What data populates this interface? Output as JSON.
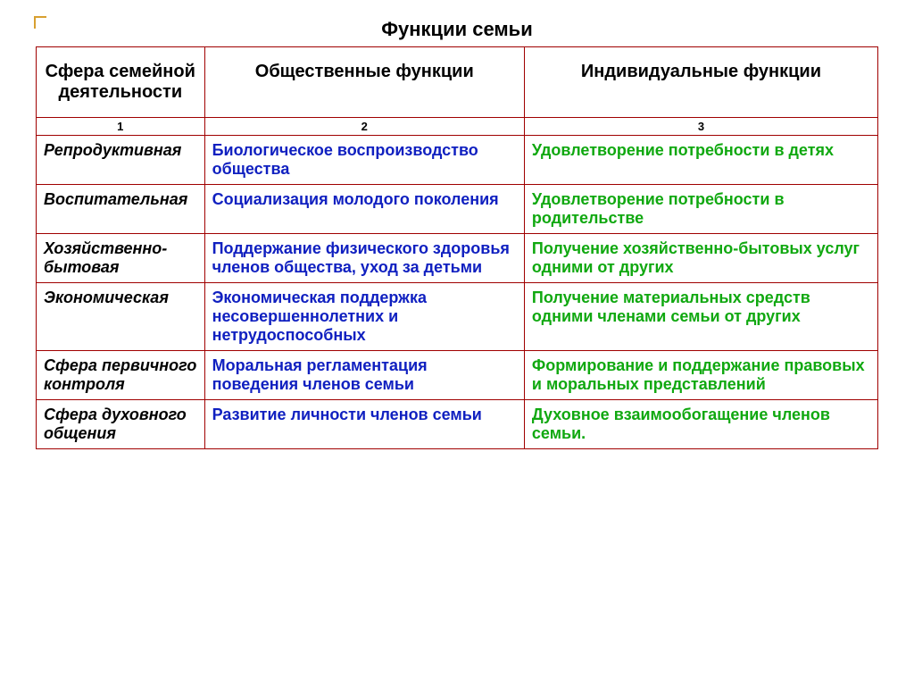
{
  "title": "Функции семьи",
  "table": {
    "border_color": "#a00000",
    "headers": [
      "Сфера семейной деятельности",
      "Общественные функции",
      "Индивидуальные функции"
    ],
    "numrow": [
      "1",
      "2",
      "3"
    ],
    "rows": [
      {
        "c1": "Репродуктивная",
        "c2": "Биологическое воспроизводство общества",
        "c3": "Удовлетворение потребности в детях"
      },
      {
        "c1": "Воспитательная",
        "c2": "Социализация молодого поколения",
        "c3": "Удовлетворение потребности в родительстве"
      },
      {
        "c1": "Хозяйственно-бытовая",
        "c2": "Поддержание физического здоровья членов общества, уход за детьми",
        "c3": "Получение хозяйственно-бытовых услуг  одними от других"
      },
      {
        "c1": "Экономическая",
        "c2": "Экономическая поддержка несовершеннолетних и нетрудоспособных",
        "c3": "Получение материальных средств одними членами семьи от других"
      },
      {
        "c1": "Сфера первичного контроля",
        "c2": "Моральная регламентация поведения членов семьи",
        "c3": "Формирование и поддержание правовых и моральных представлений"
      },
      {
        "c1": "Сфера духовного общения",
        "c2": "Развитие личности членов семьи",
        "c3": "Духовное взаимообогащение членов семьи."
      }
    ],
    "colors": {
      "col1_text": "#000000",
      "col2_text": "#1020c0",
      "col3_text": "#10a810"
    }
  }
}
